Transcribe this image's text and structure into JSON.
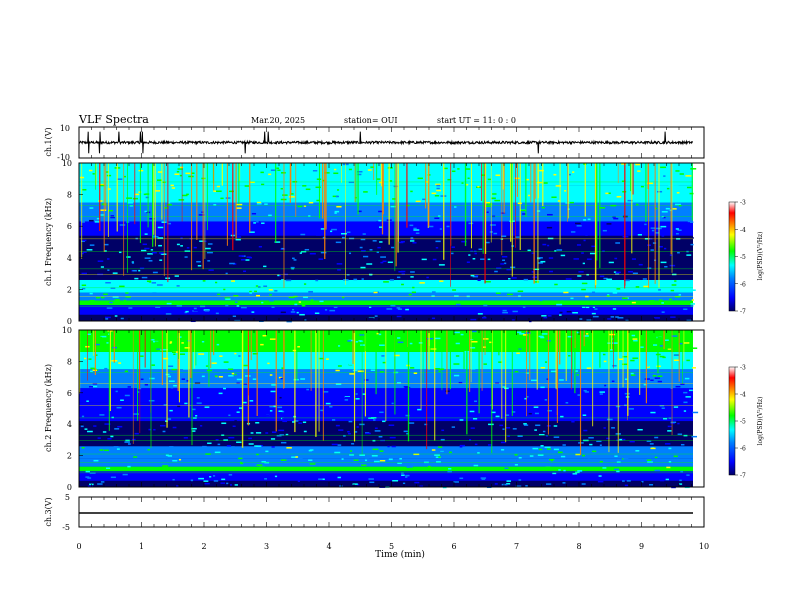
{
  "header": {
    "title": "VLF Spectra",
    "date": "Mar.20, 2025",
    "station": "station= OUI",
    "start": "start UT = 11: 0 : 0"
  },
  "colors": {
    "spectrogram_scale": [
      "#000066",
      "#0000ff",
      "#0080ff",
      "#00ffff",
      "#00ff00",
      "#ffff00",
      "#ff8000",
      "#ff0000",
      "#ffffff"
    ]
  },
  "chart_data": [
    {
      "type": "line",
      "name": "waveform-ch1",
      "ylabel": "ch.1(V)",
      "ylim": [
        -10,
        10
      ],
      "yticks": [
        "10",
        "-10"
      ],
      "xlim": [
        0,
        10
      ],
      "baseline": 0,
      "spike_times": [
        0.15,
        0.33,
        0.64,
        0.98,
        1.02,
        2.66,
        2.97,
        3.03,
        4.5,
        7.35,
        9.38
      ]
    },
    {
      "type": "heatmap",
      "name": "spectrogram-ch1",
      "ylabel": "ch.1 Frequency (kHz)",
      "ylim": [
        0,
        10
      ],
      "yticks": [
        "0",
        "2",
        "4",
        "6",
        "8",
        "10"
      ],
      "xlim": [
        0,
        10
      ],
      "colorbar": {
        "label": "log(PSD)(V²/Hz)",
        "range": [
          -7,
          -3
        ],
        "ticks": [
          "-3",
          "-4",
          "-5",
          "-6",
          "-7"
        ]
      }
    },
    {
      "type": "heatmap",
      "name": "spectrogram-ch2",
      "ylabel": "ch.2 Frequency (kHz)",
      "ylim": [
        0,
        10
      ],
      "yticks": [
        "0",
        "2",
        "4",
        "6",
        "8",
        "10"
      ],
      "xlim": [
        0,
        10
      ],
      "colorbar": {
        "label": "log(PSD)(V²/Hz)",
        "range": [
          -7,
          -3
        ],
        "ticks": [
          "-3",
          "-4",
          "-5",
          "-6",
          "-7"
        ]
      }
    },
    {
      "type": "line",
      "name": "waveform-ch3",
      "ylabel": "ch.3(V)",
      "ylim": [
        -5,
        5
      ],
      "yticks": [
        "5",
        "-5"
      ],
      "xlim": [
        0,
        10
      ],
      "baseline": 0
    }
  ],
  "xaxis": {
    "label": "Time (min)",
    "ticks": [
      "0",
      "1",
      "2",
      "3",
      "4",
      "5",
      "6",
      "7",
      "8",
      "9",
      "10"
    ]
  }
}
